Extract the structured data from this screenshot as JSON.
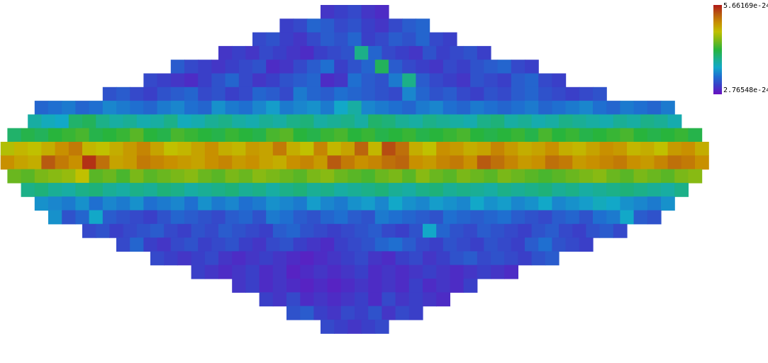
{
  "chart_data": {
    "type": "heatmap",
    "projection": "mollweide-like ellipse (pixelized sky map)",
    "colorbar": {
      "max_label": "5.66169e-24",
      "min_label": "2.76548e-24",
      "max_value": 5.66169e-24,
      "min_value": 2.76548e-24,
      "colors": [
        "#6a10c0",
        "#3a3fc8",
        "#1f6fd0",
        "#12a8c8",
        "#1cb088",
        "#28b43c",
        "#7ab818",
        "#c0c000",
        "#c89000",
        "#b85a10",
        "#b01818"
      ]
    },
    "rows": [
      [
        0.08,
        0.1,
        0.12,
        0.08,
        0.06
      ],
      [
        0.1,
        0.12,
        0.18,
        0.16,
        0.12,
        0.14,
        0.1,
        0.08,
        0.12,
        0.16,
        0.18
      ],
      [
        0.12,
        0.14,
        0.1,
        0.08,
        0.12,
        0.16,
        0.14,
        0.18,
        0.1,
        0.12,
        0.16,
        0.14,
        0.18,
        0.12,
        0.1
      ],
      [
        0.08,
        0.1,
        0.08,
        0.12,
        0.1,
        0.08,
        0.06,
        0.1,
        0.12,
        0.14,
        0.4,
        0.18,
        0.12,
        0.1,
        0.08,
        0.14,
        0.1,
        0.12,
        0.14,
        0.1
      ],
      [
        0.16,
        0.12,
        0.1,
        0.08,
        0.1,
        0.12,
        0.14,
        0.06,
        0.08,
        0.12,
        0.16,
        0.2,
        0.1,
        0.14,
        0.18,
        0.46,
        0.16,
        0.12,
        0.1,
        0.08,
        0.12,
        0.1,
        0.14,
        0.16,
        0.18,
        0.12,
        0.1
      ],
      [
        0.12,
        0.1,
        0.08,
        0.06,
        0.1,
        0.14,
        0.18,
        0.12,
        0.08,
        0.1,
        0.14,
        0.16,
        0.18,
        0.06,
        0.08,
        0.2,
        0.16,
        0.14,
        0.22,
        0.4,
        0.16,
        0.12,
        0.1,
        0.08,
        0.14,
        0.12,
        0.1,
        0.16,
        0.18,
        0.12,
        0.1
      ],
      [
        0.14,
        0.16,
        0.12,
        0.1,
        0.14,
        0.16,
        0.18,
        0.12,
        0.14,
        0.1,
        0.12,
        0.18,
        0.16,
        0.12,
        0.22,
        0.18,
        0.16,
        0.2,
        0.18,
        0.16,
        0.14,
        0.12,
        0.24,
        0.18,
        0.14,
        0.16,
        0.12,
        0.1,
        0.14,
        0.12,
        0.16,
        0.18,
        0.14,
        0.12,
        0.1,
        0.12,
        0.14
      ],
      [
        0.18,
        0.2,
        0.22,
        0.18,
        0.2,
        0.24,
        0.22,
        0.2,
        0.18,
        0.22,
        0.24,
        0.2,
        0.18,
        0.26,
        0.22,
        0.2,
        0.24,
        0.28,
        0.22,
        0.24,
        0.26,
        0.22,
        0.3,
        0.36,
        0.24,
        0.22,
        0.2,
        0.18,
        0.22,
        0.24,
        0.2,
        0.18,
        0.22,
        0.2,
        0.18,
        0.2,
        0.22,
        0.18,
        0.2,
        0.22,
        0.24,
        0.2,
        0.18,
        0.22,
        0.2,
        0.18,
        0.22
      ],
      [
        0.36,
        0.32,
        0.3,
        0.44,
        0.46,
        0.4,
        0.36,
        0.38,
        0.34,
        0.36,
        0.4,
        0.32,
        0.34,
        0.38,
        0.4,
        0.36,
        0.34,
        0.38,
        0.36,
        0.4,
        0.42,
        0.36,
        0.38,
        0.4,
        0.36,
        0.44,
        0.42,
        0.38,
        0.36,
        0.4,
        0.38,
        0.36,
        0.34,
        0.4,
        0.42,
        0.36,
        0.38,
        0.34,
        0.36,
        0.4,
        0.38,
        0.36,
        0.34,
        0.38,
        0.36,
        0.4,
        0.38,
        0.34
      ],
      [
        0.44,
        0.48,
        0.46,
        0.5,
        0.52,
        0.54,
        0.48,
        0.5,
        0.52,
        0.56,
        0.5,
        0.48,
        0.54,
        0.52,
        0.5,
        0.48,
        0.52,
        0.5,
        0.48,
        0.54,
        0.56,
        0.5,
        0.48,
        0.52,
        0.54,
        0.5,
        0.52,
        0.48,
        0.5,
        0.52,
        0.48,
        0.5,
        0.52,
        0.54,
        0.5,
        0.48,
        0.5,
        0.52,
        0.48,
        0.54,
        0.5,
        0.52,
        0.48,
        0.5,
        0.52,
        0.54,
        0.5,
        0.48,
        0.5,
        0.52,
        0.48
      ],
      [
        0.68,
        0.72,
        0.7,
        0.74,
        0.8,
        0.84,
        0.72,
        0.7,
        0.74,
        0.78,
        0.82,
        0.76,
        0.7,
        0.72,
        0.76,
        0.8,
        0.74,
        0.72,
        0.78,
        0.76,
        0.84,
        0.74,
        0.7,
        0.82,
        0.72,
        0.76,
        0.88,
        0.72,
        0.92,
        0.86,
        0.74,
        0.7,
        0.8,
        0.78,
        0.74,
        0.76,
        0.82,
        0.78,
        0.74,
        0.76,
        0.8,
        0.74,
        0.72,
        0.76,
        0.8,
        0.78,
        0.72,
        0.74,
        0.7,
        0.78,
        0.8,
        0.74
      ],
      [
        0.8,
        0.76,
        0.74,
        0.9,
        0.84,
        0.8,
        0.96,
        0.86,
        0.76,
        0.78,
        0.84,
        0.82,
        0.8,
        0.78,
        0.76,
        0.8,
        0.82,
        0.78,
        0.8,
        0.76,
        0.74,
        0.8,
        0.82,
        0.78,
        0.9,
        0.84,
        0.8,
        0.82,
        0.86,
        0.88,
        0.8,
        0.78,
        0.82,
        0.84,
        0.8,
        0.9,
        0.86,
        0.82,
        0.78,
        0.8,
        0.86,
        0.84,
        0.78,
        0.8,
        0.82,
        0.84,
        0.8,
        0.78,
        0.82,
        0.86,
        0.84,
        0.8
      ],
      [
        0.58,
        0.56,
        0.6,
        0.62,
        0.64,
        0.7,
        0.56,
        0.58,
        0.54,
        0.6,
        0.56,
        0.58,
        0.6,
        0.62,
        0.58,
        0.56,
        0.6,
        0.58,
        0.62,
        0.6,
        0.58,
        0.56,
        0.6,
        0.62,
        0.58,
        0.56,
        0.54,
        0.58,
        0.6,
        0.56,
        0.62,
        0.58,
        0.56,
        0.6,
        0.58,
        0.56,
        0.6,
        0.58,
        0.56,
        0.54,
        0.56,
        0.58,
        0.6,
        0.62,
        0.58,
        0.56,
        0.6,
        0.58,
        0.56,
        0.6,
        0.62
      ],
      [
        0.4,
        0.42,
        0.38,
        0.36,
        0.4,
        0.42,
        0.38,
        0.36,
        0.4,
        0.38,
        0.42,
        0.4,
        0.36,
        0.38,
        0.4,
        0.42,
        0.38,
        0.4,
        0.36,
        0.4,
        0.42,
        0.38,
        0.4,
        0.36,
        0.38,
        0.4,
        0.42,
        0.38,
        0.36,
        0.4,
        0.42,
        0.38,
        0.4,
        0.38,
        0.36,
        0.4,
        0.38,
        0.4,
        0.42,
        0.38,
        0.4,
        0.36,
        0.38,
        0.4,
        0.42,
        0.4,
        0.38,
        0.36,
        0.4
      ],
      [
        0.26,
        0.24,
        0.22,
        0.26,
        0.2,
        0.24,
        0.22,
        0.26,
        0.2,
        0.22,
        0.24,
        0.2,
        0.26,
        0.22,
        0.24,
        0.2,
        0.22,
        0.26,
        0.24,
        0.22,
        0.28,
        0.24,
        0.22,
        0.26,
        0.28,
        0.24,
        0.3,
        0.26,
        0.24,
        0.28,
        0.26,
        0.24,
        0.3,
        0.26,
        0.28,
        0.24,
        0.26,
        0.3,
        0.24,
        0.26,
        0.28,
        0.32,
        0.3,
        0.26,
        0.24,
        0.22,
        0.26
      ],
      [
        0.26,
        0.14,
        0.18,
        0.3,
        0.16,
        0.14,
        0.12,
        0.1,
        0.14,
        0.18,
        0.16,
        0.14,
        0.12,
        0.16,
        0.18,
        0.14,
        0.22,
        0.2,
        0.16,
        0.14,
        0.18,
        0.2,
        0.16,
        0.14,
        0.22,
        0.2,
        0.18,
        0.16,
        0.14,
        0.2,
        0.18,
        0.16,
        0.18,
        0.2,
        0.16,
        0.14,
        0.12,
        0.16,
        0.18,
        0.14,
        0.2,
        0.22,
        0.3,
        0.16,
        0.14
      ],
      [
        0.12,
        0.14,
        0.1,
        0.12,
        0.14,
        0.16,
        0.12,
        0.1,
        0.14,
        0.12,
        0.16,
        0.14,
        0.12,
        0.1,
        0.16,
        0.18,
        0.14,
        0.12,
        0.1,
        0.12,
        0.14,
        0.16,
        0.12,
        0.1,
        0.14,
        0.3,
        0.18,
        0.14,
        0.12,
        0.16,
        0.14,
        0.12,
        0.1,
        0.14,
        0.16,
        0.12,
        0.1,
        0.14,
        0.16,
        0.12
      ],
      [
        0.12,
        0.18,
        0.1,
        0.08,
        0.12,
        0.14,
        0.1,
        0.12,
        0.14,
        0.1,
        0.08,
        0.12,
        0.14,
        0.1,
        0.08,
        0.06,
        0.1,
        0.12,
        0.14,
        0.18,
        0.2,
        0.16,
        0.12,
        0.1,
        0.14,
        0.12,
        0.1,
        0.14,
        0.12,
        0.1,
        0.16,
        0.2,
        0.14,
        0.12,
        0.1
      ],
      [
        0.12,
        0.1,
        0.08,
        0.1,
        0.12,
        0.08,
        0.06,
        0.08,
        0.1,
        0.08,
        0.06,
        0.04,
        0.06,
        0.08,
        0.1,
        0.12,
        0.08,
        0.06,
        0.1,
        0.12,
        0.08,
        0.1,
        0.14,
        0.16,
        0.12,
        0.14,
        0.12,
        0.1,
        0.14,
        0.16
      ],
      [
        0.1,
        0.08,
        0.06,
        0.08,
        0.1,
        0.06,
        0.08,
        0.04,
        0.06,
        0.08,
        0.06,
        0.08,
        0.1,
        0.06,
        0.08,
        0.06,
        0.08,
        0.1,
        0.08,
        0.06,
        0.08,
        0.1,
        0.08,
        0.06
      ],
      [
        0.08,
        0.1,
        0.06,
        0.08,
        0.06,
        0.04,
        0.06,
        0.04,
        0.06,
        0.08,
        0.06,
        0.08,
        0.06,
        0.1,
        0.06,
        0.08,
        0.06,
        0.1
      ],
      [
        0.1,
        0.08,
        0.12,
        0.06,
        0.08,
        0.06,
        0.08,
        0.1,
        0.06,
        0.12,
        0.08,
        0.1,
        0.08,
        0.06
      ],
      [
        0.14,
        0.16,
        0.1,
        0.08,
        0.12,
        0.1,
        0.14,
        0.08,
        0.12,
        0.1
      ],
      [
        0.12,
        0.1,
        0.08,
        0.1,
        0.12
      ]
    ]
  }
}
